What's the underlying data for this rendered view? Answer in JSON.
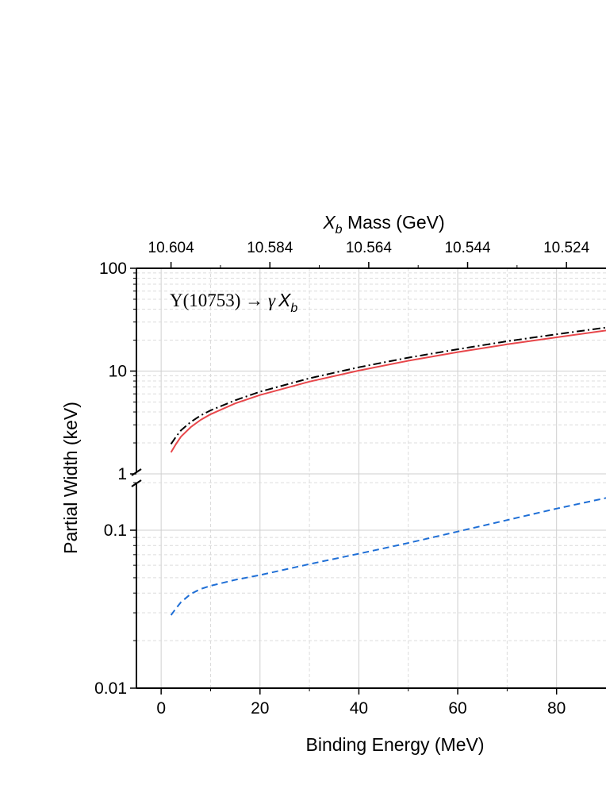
{
  "chart_data": {
    "type": "line",
    "xlabel": "Binding Energy (MeV)",
    "ylabel": "Partial Width (keV)",
    "top_axis": {
      "label_italic": "X",
      "label_sub": "b",
      "label_rest": " Mass (GeV)",
      "tick_values": [
        10.604,
        10.584,
        10.564,
        10.544,
        10.524
      ],
      "tick_labels": [
        "10.604",
        "10.584",
        "10.564",
        "10.544",
        "10.524"
      ]
    },
    "annotation": {
      "upsilon": "Υ(10753) → ",
      "gamma": "γ",
      "x": "X",
      "sub": "b"
    },
    "xlim": [
      -5,
      90
    ],
    "x_ticks": [
      0,
      20,
      40,
      60,
      80
    ],
    "x_tick_labels": [
      "0",
      "20",
      "40",
      "60",
      "80"
    ],
    "y_scale": "log",
    "y_axis_break": true,
    "y_upper_range": [
      1,
      100
    ],
    "y_lower_range": [
      0.01,
      0.2
    ],
    "y_ticks": [
      0.01,
      0.1,
      1,
      10,
      100
    ],
    "y_tick_labels": [
      "0.01",
      "0.1",
      "1",
      "10",
      "100"
    ],
    "grid": true,
    "series": [
      {
        "style": "dash-dot",
        "color": "#000000",
        "x": [
          2,
          3,
          4,
          6,
          8,
          10,
          15,
          20,
          30,
          40,
          50,
          60,
          70,
          80,
          90
        ],
        "y": [
          1.95,
          2.3,
          2.65,
          3.2,
          3.7,
          4.15,
          5.2,
          6.3,
          8.5,
          10.9,
          13.5,
          16.3,
          19.5,
          22.8,
          26.5
        ]
      },
      {
        "style": "solid",
        "color": "#e8474b",
        "x": [
          2,
          3,
          4,
          6,
          8,
          10,
          15,
          20,
          30,
          40,
          50,
          60,
          70,
          80,
          90
        ],
        "y": [
          1.62,
          1.95,
          2.3,
          2.85,
          3.35,
          3.8,
          4.85,
          5.85,
          7.9,
          10.1,
          12.6,
          15.3,
          18.2,
          21.3,
          24.8
        ]
      },
      {
        "style": "dashed",
        "color": "#1f6fd6",
        "x": [
          2,
          3,
          4,
          6,
          8,
          10,
          15,
          20,
          30,
          40,
          50,
          60,
          70,
          80,
          90
        ],
        "y": [
          0.029,
          0.032,
          0.035,
          0.0395,
          0.0425,
          0.0445,
          0.0485,
          0.052,
          0.061,
          0.071,
          0.083,
          0.098,
          0.116,
          0.137,
          0.16
        ]
      }
    ]
  }
}
